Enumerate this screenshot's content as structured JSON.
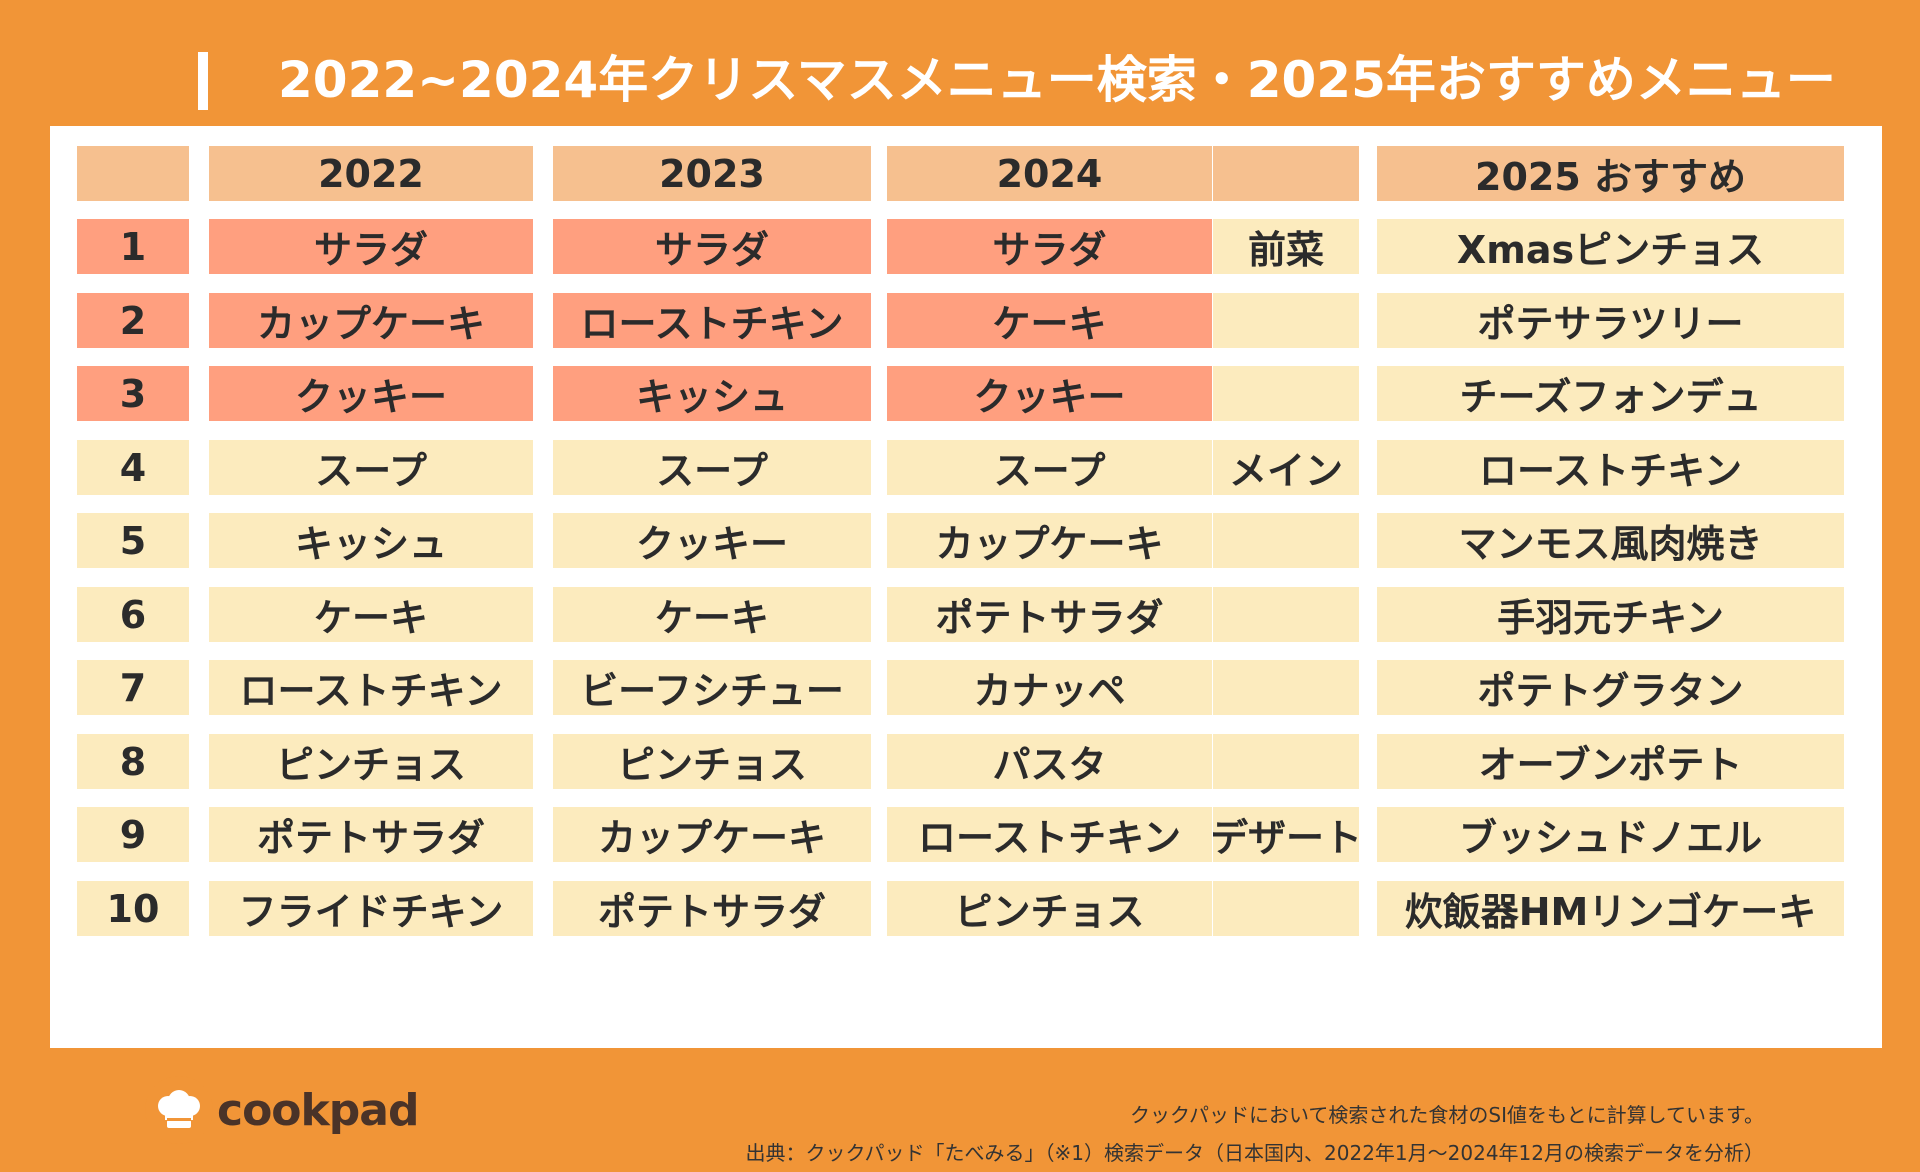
{
  "title": "2022~2024年クリスマスメニュー検索・2025年おすすめメニュー",
  "headers": [
    "",
    "2022",
    "2023",
    "2024",
    "",
    "2025 おすすめ"
  ],
  "rows": [
    {
      "rank": "1",
      "y2022": "サラダ",
      "y2023": "サラダ",
      "y2024": "サラダ",
      "category": "前菜",
      "rec": "Xmasピンチョス",
      "highlight": true
    },
    {
      "rank": "2",
      "y2022": "カップケーキ",
      "y2023": "ローストチキン",
      "y2024": "ケーキ",
      "category": "",
      "rec": "ポテサラツリー",
      "highlight": true
    },
    {
      "rank": "3",
      "y2022": "クッキー",
      "y2023": "キッシュ",
      "y2024": "クッキー",
      "category": "",
      "rec": "チーズフォンデュ",
      "highlight": true
    },
    {
      "rank": "4",
      "y2022": "スープ",
      "y2023": "スープ",
      "y2024": "スープ",
      "category": "メイン",
      "rec": "ローストチキン",
      "highlight": false
    },
    {
      "rank": "5",
      "y2022": "キッシュ",
      "y2023": "クッキー",
      "y2024": "カップケーキ",
      "category": "",
      "rec": "マンモス風肉焼き",
      "highlight": false
    },
    {
      "rank": "6",
      "y2022": "ケーキ",
      "y2023": "ケーキ",
      "y2024": "ポテトサラダ",
      "category": "",
      "rec": "手羽元チキン",
      "highlight": false
    },
    {
      "rank": "7",
      "y2022": "ローストチキン",
      "y2023": "ビーフシチュー",
      "y2024": "カナッペ",
      "category": "",
      "rec": "ポテトグラタン",
      "highlight": false
    },
    {
      "rank": "8",
      "y2022": "ピンチョス",
      "y2023": "ピンチョス",
      "y2024": "パスタ",
      "category": "",
      "rec": "オーブンポテト",
      "highlight": false
    },
    {
      "rank": "9",
      "y2022": "ポテトサラダ",
      "y2023": "カップケーキ",
      "y2024": "ローストチキン",
      "category": "デザート",
      "rec": "ブッシュドノエル",
      "highlight": false
    },
    {
      "rank": "10",
      "y2022": "フライドチキン",
      "y2023": "ポテトサラダ",
      "y2024": "ピンチョス",
      "category": "",
      "rec": "炊飯器HMリンゴケーキ",
      "highlight": false
    }
  ],
  "logo": {
    "text": "cookpad",
    "icon": "chef-hat-icon"
  },
  "footer": {
    "line1": "クックパッドにおいて検索された食材のSI値をもとに計算しています。",
    "line2": "出典：クックパッド「たべみる」（※1）検索データ（日本国内、2022年1月〜2024年12月の検索データを分析）"
  },
  "colors": {
    "background": "#F19537",
    "header": "#F6C08F",
    "top3": "#FF9F7F",
    "row": "#FCEBBE"
  }
}
